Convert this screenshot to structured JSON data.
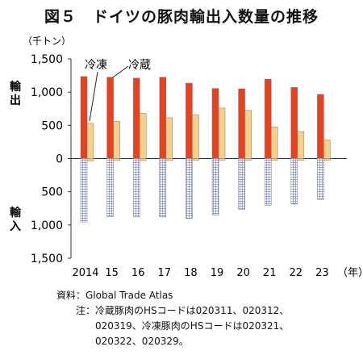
{
  "title": "図５　ドイツの豚肉輸出入数量の推移",
  "chart_data": {
    "type": "bar",
    "unit_label": "（千トン）",
    "year_suffix": "（年）",
    "side_labels": {
      "export": "輸出",
      "import": "輸入"
    },
    "categories": [
      "2014",
      "15",
      "16",
      "17",
      "18",
      "19",
      "20",
      "21",
      "22",
      "23"
    ],
    "ylim": [
      -1500,
      1500
    ],
    "yticks": [
      1500,
      1000,
      500,
      0,
      -500,
      -1000,
      -1500
    ],
    "ytick_labels": [
      "1,500",
      "1,000",
      "500",
      "0",
      "500",
      "1,000",
      "1,500"
    ],
    "series": [
      {
        "name": "冷蔵",
        "direction": "export",
        "color": "#e8411f",
        "values": [
          1235,
          1225,
          1210,
          1225,
          1135,
          1055,
          1050,
          1195,
          1070,
          965
        ]
      },
      {
        "name": "冷凍",
        "direction": "export",
        "color": "#f7d08a",
        "values": [
          530,
          560,
          680,
          615,
          660,
          760,
          725,
          475,
          405,
          280
        ]
      },
      {
        "name": "冷凍",
        "direction": "export-negative",
        "color": "#f7d08a",
        "values": [
          -35,
          -30,
          -30,
          -30,
          -25,
          -25,
          -25,
          -25,
          -25,
          -25
        ]
      },
      {
        "name": "冷蔵",
        "direction": "import",
        "color": "#4a5fc1",
        "pattern": "grid",
        "values": [
          -955,
          -875,
          -880,
          -880,
          -900,
          -850,
          -765,
          -705,
          -685,
          -615
        ]
      }
    ],
    "legend_callouts": [
      "冷凍",
      "冷蔵"
    ]
  },
  "notes": {
    "source_label": "資料：",
    "source_text": "Global Trade Atlas",
    "note_label": "注：",
    "note_lines": [
      "冷蔵豚肉のHSコードは020311、020312、",
      "020319、冷凍豚肉のHSコードは020321、",
      "020322、020329。"
    ]
  }
}
